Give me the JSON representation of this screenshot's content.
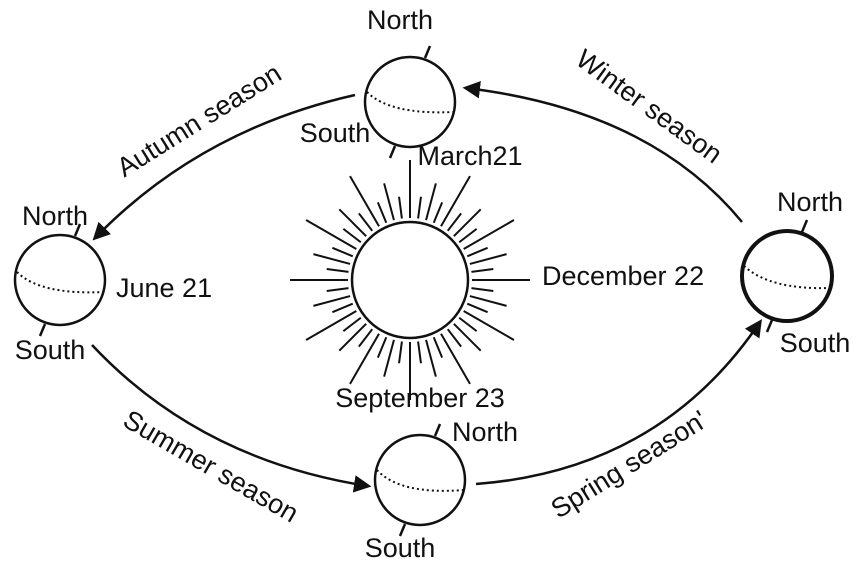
{
  "earths": [
    {
      "north": "North",
      "south": "South",
      "date": "March21"
    },
    {
      "north": "North",
      "south": "South",
      "date": "June 21"
    },
    {
      "north": "North",
      "south": "South",
      "date": "December 22"
    },
    {
      "north": "North",
      "south": "South",
      "date": "September 23"
    }
  ],
  "seasons": [
    "Autumn season",
    "Winter season",
    "Summer season",
    "Spring season'"
  ]
}
